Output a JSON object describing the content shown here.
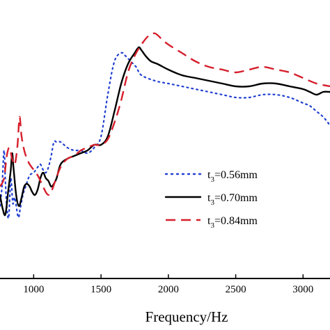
{
  "chart_data": {
    "type": "line",
    "xlabel": "Frequency/Hz",
    "ylabel": "",
    "title": "",
    "xlim": [
      750,
      3200
    ],
    "ylim": [
      0,
      1
    ],
    "grid": false,
    "legend_position": "lower-right",
    "x_ticks": [
      "1000",
      "1500",
      "2000",
      "2500",
      "3000"
    ],
    "x_tick_values": [
      1000,
      1500,
      2000,
      2500,
      3000
    ],
    "series": [
      {
        "name_prefix": "t",
        "name_sub": "3",
        "name_suffix": "=0.56mm",
        "color": "#1f3fd0",
        "dash": "dotted",
        "points": [
          [
            750,
            0.26
          ],
          [
            765,
            0.33
          ],
          [
            780,
            0.46
          ],
          [
            790,
            0.35
          ],
          [
            800,
            0.26
          ],
          [
            815,
            0.22
          ],
          [
            830,
            0.36
          ],
          [
            845,
            0.27
          ],
          [
            860,
            0.29
          ],
          [
            885,
            0.22
          ],
          [
            900,
            0.25
          ],
          [
            920,
            0.3
          ],
          [
            940,
            0.33
          ],
          [
            970,
            0.37
          ],
          [
            1000,
            0.38
          ],
          [
            1030,
            0.4
          ],
          [
            1050,
            0.41
          ],
          [
            1070,
            0.39
          ],
          [
            1090,
            0.38
          ],
          [
            1110,
            0.4
          ],
          [
            1130,
            0.44
          ],
          [
            1150,
            0.49
          ],
          [
            1170,
            0.49
          ],
          [
            1200,
            0.49
          ],
          [
            1250,
            0.47
          ],
          [
            1300,
            0.46
          ],
          [
            1350,
            0.46
          ],
          [
            1400,
            0.45
          ],
          [
            1450,
            0.47
          ],
          [
            1500,
            0.51
          ],
          [
            1550,
            0.66
          ],
          [
            1600,
            0.78
          ],
          [
            1650,
            0.81
          ],
          [
            1680,
            0.8
          ],
          [
            1720,
            0.78
          ],
          [
            1760,
            0.76
          ],
          [
            1800,
            0.73
          ],
          [
            1900,
            0.71
          ],
          [
            2000,
            0.7
          ],
          [
            2100,
            0.69
          ],
          [
            2200,
            0.68
          ],
          [
            2300,
            0.67
          ],
          [
            2400,
            0.66
          ],
          [
            2500,
            0.65
          ],
          [
            2600,
            0.65
          ],
          [
            2700,
            0.66
          ],
          [
            2800,
            0.66
          ],
          [
            2900,
            0.65
          ],
          [
            3000,
            0.63
          ],
          [
            3050,
            0.62
          ],
          [
            3100,
            0.6
          ],
          [
            3150,
            0.58
          ],
          [
            3200,
            0.55
          ]
        ]
      },
      {
        "name_prefix": "t",
        "name_sub": "3",
        "name_suffix": "=0.70mm",
        "color": "#000000",
        "dash": "solid",
        "points": [
          [
            750,
            0.3
          ],
          [
            770,
            0.25
          ],
          [
            790,
            0.23
          ],
          [
            810,
            0.31
          ],
          [
            830,
            0.39
          ],
          [
            840,
            0.45
          ],
          [
            850,
            0.4
          ],
          [
            870,
            0.3
          ],
          [
            890,
            0.26
          ],
          [
            910,
            0.29
          ],
          [
            930,
            0.33
          ],
          [
            950,
            0.34
          ],
          [
            970,
            0.33
          ],
          [
            990,
            0.31
          ],
          [
            1010,
            0.3
          ],
          [
            1030,
            0.32
          ],
          [
            1050,
            0.36
          ],
          [
            1070,
            0.38
          ],
          [
            1090,
            0.36
          ],
          [
            1110,
            0.35
          ],
          [
            1130,
            0.33
          ],
          [
            1150,
            0.34
          ],
          [
            1170,
            0.36
          ],
          [
            1200,
            0.41
          ],
          [
            1250,
            0.43
          ],
          [
            1300,
            0.44
          ],
          [
            1350,
            0.45
          ],
          [
            1400,
            0.46
          ],
          [
            1450,
            0.48
          ],
          [
            1500,
            0.48
          ],
          [
            1550,
            0.51
          ],
          [
            1600,
            0.6
          ],
          [
            1650,
            0.7
          ],
          [
            1700,
            0.77
          ],
          [
            1750,
            0.81
          ],
          [
            1780,
            0.83
          ],
          [
            1800,
            0.82
          ],
          [
            1830,
            0.8
          ],
          [
            1870,
            0.78
          ],
          [
            1920,
            0.77
          ],
          [
            2000,
            0.75
          ],
          [
            2100,
            0.73
          ],
          [
            2200,
            0.72
          ],
          [
            2300,
            0.71
          ],
          [
            2400,
            0.7
          ],
          [
            2500,
            0.69
          ],
          [
            2600,
            0.69
          ],
          [
            2700,
            0.7
          ],
          [
            2800,
            0.7
          ],
          [
            2900,
            0.69
          ],
          [
            3000,
            0.68
          ],
          [
            3050,
            0.67
          ],
          [
            3100,
            0.66
          ],
          [
            3150,
            0.67
          ],
          [
            3200,
            0.67
          ]
        ]
      },
      {
        "name_prefix": "t",
        "name_sub": "3",
        "name_suffix": "=0.84mm",
        "color": "#d61f2c",
        "dash": "dashed",
        "points": [
          [
            750,
            0.33
          ],
          [
            780,
            0.36
          ],
          [
            800,
            0.44
          ],
          [
            820,
            0.47
          ],
          [
            840,
            0.43
          ],
          [
            860,
            0.41
          ],
          [
            880,
            0.48
          ],
          [
            895,
            0.58
          ],
          [
            910,
            0.51
          ],
          [
            930,
            0.46
          ],
          [
            950,
            0.43
          ],
          [
            970,
            0.41
          ],
          [
            1000,
            0.39
          ],
          [
            1030,
            0.37
          ],
          [
            1060,
            0.34
          ],
          [
            1090,
            0.31
          ],
          [
            1110,
            0.3
          ],
          [
            1130,
            0.31
          ],
          [
            1160,
            0.35
          ],
          [
            1200,
            0.4
          ],
          [
            1250,
            0.43
          ],
          [
            1300,
            0.44
          ],
          [
            1350,
            0.46
          ],
          [
            1400,
            0.47
          ],
          [
            1450,
            0.48
          ],
          [
            1500,
            0.48
          ],
          [
            1550,
            0.5
          ],
          [
            1600,
            0.56
          ],
          [
            1650,
            0.64
          ],
          [
            1700,
            0.74
          ],
          [
            1750,
            0.8
          ],
          [
            1800,
            0.84
          ],
          [
            1850,
            0.87
          ],
          [
            1900,
            0.88
          ],
          [
            1950,
            0.86
          ],
          [
            2000,
            0.84
          ],
          [
            2100,
            0.81
          ],
          [
            2200,
            0.78
          ],
          [
            2300,
            0.76
          ],
          [
            2400,
            0.75
          ],
          [
            2500,
            0.74
          ],
          [
            2600,
            0.75
          ],
          [
            2700,
            0.76
          ],
          [
            2800,
            0.75
          ],
          [
            2900,
            0.74
          ],
          [
            3000,
            0.72
          ],
          [
            3100,
            0.7
          ],
          [
            3200,
            0.69
          ]
        ]
      }
    ]
  }
}
